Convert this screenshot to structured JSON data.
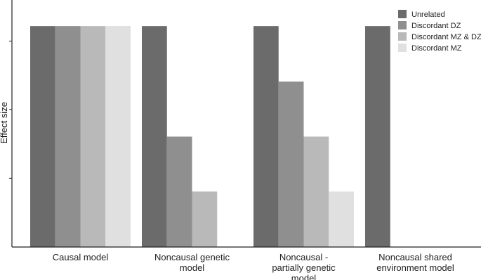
{
  "chart_data": {
    "type": "bar",
    "y_label": "Effect size",
    "categories": [
      "Causal model",
      "Noncausal genetic\nmodel",
      "Noncausal -\npartially genetic\nmodel",
      "Noncausal shared\nenvironment model"
    ],
    "series": [
      {
        "name": "Unrelated",
        "color": "#6b6b6b",
        "values": [
          3.22,
          3.22,
          3.22,
          3.22
        ]
      },
      {
        "name": "Discordant DZ",
        "color": "#8f8f8f",
        "values": [
          3.22,
          1.61,
          2.41,
          0
        ]
      },
      {
        "name": "Discordant MZ & DZ",
        "color": "#b9b9b9",
        "values": [
          3.22,
          0.81,
          1.61,
          0
        ]
      },
      {
        "name": "Discordant MZ",
        "color": "#e0e0e0",
        "values": [
          3.22,
          0,
          0.81,
          0
        ]
      }
    ],
    "ylim": [
      0,
      3.6
    ],
    "yticks": [
      1,
      2,
      3
    ],
    "legend": "top-right"
  }
}
